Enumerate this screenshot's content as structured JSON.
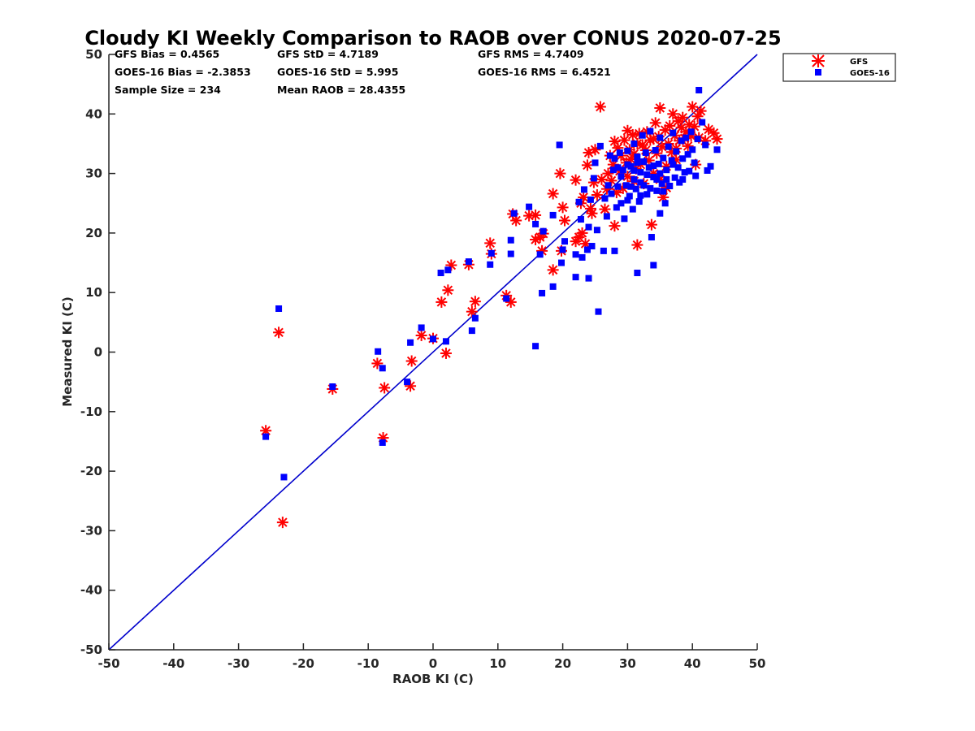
{
  "chart_data": {
    "type": "scatter",
    "title": "Cloudy KI Weekly Comparison to RAOB over CONUS 2020-07-25",
    "xlabel": "RAOB KI (C)",
    "ylabel": "Measured KI (C)",
    "xlim": [
      -50,
      50
    ],
    "ylim": [
      -50,
      50
    ],
    "xticks": [
      "-50",
      "-40",
      "-30",
      "-20",
      "-10",
      "0",
      "10",
      "20",
      "30",
      "40",
      "50"
    ],
    "yticks": [
      "-50",
      "-40",
      "-30",
      "-20",
      "-10",
      "0",
      "10",
      "20",
      "30",
      "40",
      "50"
    ],
    "grid": false,
    "legend_position": "outside-top-right",
    "reference_line": {
      "from": [
        -50,
        -50
      ],
      "to": [
        50,
        50
      ],
      "color": "#0000cc"
    },
    "stats": {
      "gfs_bias": "GFS Bias = 0.4565",
      "gfs_std": "GFS StD = 4.7189",
      "gfs_rms": "GFS RMS = 4.7409",
      "goes_bias": "GOES-16 Bias = -2.3853",
      "goes_std": "GOES-16 StD = 5.995",
      "goes_rms": "GOES-16 RMS = 6.4521",
      "sample_size": "Sample Size = 234",
      "mean_raob": "Mean RAOB = 28.4355"
    },
    "series": [
      {
        "name": "GFS",
        "marker": "asterisk",
        "color": "#ff0000",
        "points": [
          [
            -25.8,
            -13.2
          ],
          [
            -23.8,
            3.3
          ],
          [
            -23.2,
            -28.6
          ],
          [
            -15.5,
            -6.2
          ],
          [
            -8.6,
            -1.9
          ],
          [
            -7.7,
            -14.4
          ],
          [
            -7.5,
            -6.0
          ],
          [
            -3.5,
            -5.7
          ],
          [
            -3.3,
            -1.5
          ],
          [
            -1.8,
            2.8
          ],
          [
            0.0,
            2.3
          ],
          [
            1.3,
            8.4
          ],
          [
            2.0,
            -0.2
          ],
          [
            2.3,
            10.4
          ],
          [
            2.8,
            14.6
          ],
          [
            5.5,
            14.7
          ],
          [
            6.0,
            6.8
          ],
          [
            6.5,
            8.5
          ],
          [
            8.8,
            18.3
          ],
          [
            9.0,
            16.5
          ],
          [
            11.3,
            9.5
          ],
          [
            12.0,
            8.4
          ],
          [
            12.3,
            23.2
          ],
          [
            12.8,
            22.1
          ],
          [
            14.8,
            22.9
          ],
          [
            15.8,
            23.0
          ],
          [
            15.8,
            18.9
          ],
          [
            16.5,
            19.3
          ],
          [
            16.8,
            17.0
          ],
          [
            17.0,
            19.9
          ],
          [
            18.5,
            13.8
          ],
          [
            18.5,
            26.6
          ],
          [
            19.6,
            30.0
          ],
          [
            19.8,
            17.0
          ],
          [
            20.0,
            24.3
          ],
          [
            20.3,
            22.1
          ],
          [
            22.0,
            28.9
          ],
          [
            22.0,
            18.6
          ],
          [
            22.5,
            19.3
          ],
          [
            22.8,
            25.0
          ],
          [
            23.0,
            20.0
          ],
          [
            23.2,
            26.0
          ],
          [
            23.5,
            18.2
          ],
          [
            23.8,
            31.4
          ],
          [
            24.0,
            33.5
          ],
          [
            24.3,
            24.1
          ],
          [
            24.5,
            23.3
          ],
          [
            24.8,
            28.5
          ],
          [
            25.0,
            34.0
          ],
          [
            25.3,
            26.4
          ],
          [
            25.8,
            41.2
          ],
          [
            26.0,
            29.0
          ],
          [
            26.5,
            24.0
          ],
          [
            26.8,
            27.4
          ],
          [
            27.0,
            30.0
          ],
          [
            27.3,
            33.0
          ],
          [
            27.5,
            28.8
          ],
          [
            27.8,
            31.5
          ],
          [
            28.0,
            21.2
          ],
          [
            28.0,
            35.4
          ],
          [
            28.3,
            26.8
          ],
          [
            28.5,
            34.3
          ],
          [
            28.8,
            30.4
          ],
          [
            29.0,
            33.0
          ],
          [
            29.3,
            27.5
          ],
          [
            29.5,
            35.6
          ],
          [
            29.8,
            31.8
          ],
          [
            30.0,
            29.5
          ],
          [
            30.3,
            34.0
          ],
          [
            30.5,
            32.4
          ],
          [
            30.8,
            36.5
          ],
          [
            31.0,
            28.7
          ],
          [
            31.0,
            33.3
          ],
          [
            31.3,
            30.8
          ],
          [
            31.5,
            18.0
          ],
          [
            31.5,
            35.0
          ],
          [
            31.8,
            36.7
          ],
          [
            32.0,
            31.5
          ],
          [
            32.3,
            34.8
          ],
          [
            32.5,
            28.3
          ],
          [
            32.8,
            33.9
          ],
          [
            33.0,
            37.0
          ],
          [
            33.3,
            32.2
          ],
          [
            33.5,
            35.6
          ],
          [
            33.7,
            21.4
          ],
          [
            34.0,
            30.0
          ],
          [
            34.3,
            38.5
          ],
          [
            34.5,
            33.4
          ],
          [
            34.8,
            36.2
          ],
          [
            35.0,
            41.0
          ],
          [
            35.3,
            34.5
          ],
          [
            35.5,
            26.0
          ],
          [
            35.8,
            37.3
          ],
          [
            36.0,
            31.2
          ],
          [
            36.3,
            35.0
          ],
          [
            36.5,
            38.0
          ],
          [
            36.8,
            33.6
          ],
          [
            37.0,
            40.0
          ],
          [
            37.3,
            36.4
          ],
          [
            37.5,
            34.2
          ],
          [
            37.8,
            38.8
          ],
          [
            38.0,
            35.5
          ],
          [
            38.3,
            37.7
          ],
          [
            38.5,
            39.4
          ],
          [
            38.8,
            35.9
          ],
          [
            39.0,
            37.0
          ],
          [
            39.3,
            34.6
          ],
          [
            39.5,
            38.2
          ],
          [
            39.8,
            36.3
          ],
          [
            40.0,
            41.2
          ],
          [
            40.3,
            37.9
          ],
          [
            40.5,
            31.5
          ],
          [
            40.8,
            39.6
          ],
          [
            41.0,
            36.0
          ],
          [
            41.3,
            40.5
          ],
          [
            42.0,
            35.5
          ],
          [
            42.5,
            37.4
          ],
          [
            43.3,
            36.8
          ],
          [
            43.8,
            35.8
          ],
          [
            34.0,
            35.8
          ],
          [
            35.0,
            29.0
          ],
          [
            36.0,
            27.6
          ],
          [
            37.5,
            32.3
          ],
          [
            30.0,
            37.2
          ]
        ]
      },
      {
        "name": "GOES-16",
        "marker": "square",
        "color": "#0000ff",
        "points": [
          [
            -25.8,
            -14.2
          ],
          [
            -23.8,
            7.3
          ],
          [
            -23.0,
            -21.0
          ],
          [
            -15.5,
            -5.8
          ],
          [
            -8.5,
            0.1
          ],
          [
            -7.8,
            -2.7
          ],
          [
            -7.8,
            -15.2
          ],
          [
            -3.5,
            1.6
          ],
          [
            -4.0,
            -5.0
          ],
          [
            -1.8,
            4.1
          ],
          [
            0.0,
            2.2
          ],
          [
            1.2,
            13.3
          ],
          [
            2.0,
            1.8
          ],
          [
            2.3,
            13.8
          ],
          [
            5.5,
            15.2
          ],
          [
            6.0,
            3.6
          ],
          [
            6.5,
            5.7
          ],
          [
            8.8,
            14.7
          ],
          [
            9.0,
            16.6
          ],
          [
            11.3,
            9.0
          ],
          [
            12.0,
            16.5
          ],
          [
            12.0,
            18.8
          ],
          [
            12.5,
            23.3
          ],
          [
            14.8,
            24.4
          ],
          [
            15.8,
            1.0
          ],
          [
            15.8,
            21.5
          ],
          [
            16.5,
            16.4
          ],
          [
            16.8,
            9.9
          ],
          [
            17.0,
            20.3
          ],
          [
            18.5,
            11.0
          ],
          [
            18.5,
            23.0
          ],
          [
            19.5,
            34.8
          ],
          [
            19.8,
            15.0
          ],
          [
            20.0,
            17.2
          ],
          [
            20.3,
            18.6
          ],
          [
            22.0,
            12.6
          ],
          [
            22.0,
            16.4
          ],
          [
            22.5,
            25.2
          ],
          [
            22.8,
            22.3
          ],
          [
            23.0,
            15.9
          ],
          [
            23.3,
            27.3
          ],
          [
            23.8,
            17.2
          ],
          [
            24.0,
            12.4
          ],
          [
            24.0,
            21.0
          ],
          [
            24.3,
            25.6
          ],
          [
            24.5,
            17.8
          ],
          [
            24.8,
            29.2
          ],
          [
            25.0,
            31.8
          ],
          [
            25.3,
            20.5
          ],
          [
            25.5,
            6.8
          ],
          [
            25.8,
            34.6
          ],
          [
            26.3,
            17.0
          ],
          [
            26.5,
            25.8
          ],
          [
            26.8,
            22.8
          ],
          [
            27.0,
            28.0
          ],
          [
            27.3,
            33.0
          ],
          [
            27.5,
            26.6
          ],
          [
            27.8,
            30.6
          ],
          [
            28.0,
            17.0
          ],
          [
            28.0,
            32.5
          ],
          [
            28.3,
            24.3
          ],
          [
            28.5,
            27.8
          ],
          [
            28.8,
            33.5
          ],
          [
            29.0,
            25.0
          ],
          [
            29.3,
            30.6
          ],
          [
            29.5,
            22.4
          ],
          [
            29.8,
            28.0
          ],
          [
            30.0,
            33.8
          ],
          [
            30.3,
            26.2
          ],
          [
            30.5,
            31.2
          ],
          [
            30.8,
            24.0
          ],
          [
            31.0,
            29.0
          ],
          [
            31.0,
            35.0
          ],
          [
            31.3,
            27.4
          ],
          [
            31.5,
            13.3
          ],
          [
            31.5,
            32.8
          ],
          [
            31.8,
            25.3
          ],
          [
            32.0,
            30.2
          ],
          [
            32.3,
            36.4
          ],
          [
            32.5,
            28.0
          ],
          [
            32.8,
            33.5
          ],
          [
            33.0,
            26.5
          ],
          [
            33.3,
            31.0
          ],
          [
            33.5,
            37.1
          ],
          [
            33.7,
            19.3
          ],
          [
            34.0,
            14.6
          ],
          [
            34.0,
            29.4
          ],
          [
            34.3,
            33.9
          ],
          [
            34.5,
            27.1
          ],
          [
            34.8,
            31.6
          ],
          [
            35.0,
            23.3
          ],
          [
            35.0,
            36.0
          ],
          [
            35.3,
            28.3
          ],
          [
            35.5,
            32.6
          ],
          [
            35.8,
            25.0
          ],
          [
            36.0,
            30.6
          ],
          [
            36.3,
            34.5
          ],
          [
            36.5,
            27.9
          ],
          [
            36.8,
            32.2
          ],
          [
            37.0,
            36.8
          ],
          [
            37.3,
            29.3
          ],
          [
            37.5,
            33.7
          ],
          [
            37.8,
            31.0
          ],
          [
            38.0,
            28.5
          ],
          [
            38.3,
            35.5
          ],
          [
            38.5,
            32.5
          ],
          [
            38.8,
            30.2
          ],
          [
            39.0,
            36.0
          ],
          [
            39.3,
            33.2
          ],
          [
            39.5,
            30.4
          ],
          [
            39.8,
            37.0
          ],
          [
            40.0,
            34.0
          ],
          [
            40.3,
            31.8
          ],
          [
            40.5,
            29.6
          ],
          [
            40.8,
            35.8
          ],
          [
            41.0,
            44.0
          ],
          [
            41.5,
            38.6
          ],
          [
            42.0,
            34.8
          ],
          [
            42.3,
            30.5
          ],
          [
            42.8,
            31.2
          ],
          [
            43.8,
            34.0
          ],
          [
            30.0,
            31.5
          ],
          [
            31.0,
            30.5
          ],
          [
            32.0,
            28.5
          ],
          [
            33.0,
            29.8
          ],
          [
            34.0,
            31.3
          ],
          [
            35.0,
            30.0
          ],
          [
            36.0,
            29.0
          ],
          [
            29.0,
            29.5
          ],
          [
            30.5,
            27.8
          ],
          [
            33.5,
            27.5
          ],
          [
            32.5,
            32.0
          ],
          [
            31.5,
            31.8
          ],
          [
            34.5,
            29.0
          ],
          [
            28.5,
            31.0
          ],
          [
            30.0,
            25.5
          ],
          [
            32.0,
            26.3
          ],
          [
            35.5,
            27.0
          ],
          [
            37.0,
            31.5
          ],
          [
            38.5,
            29.0
          ]
        ]
      }
    ]
  }
}
